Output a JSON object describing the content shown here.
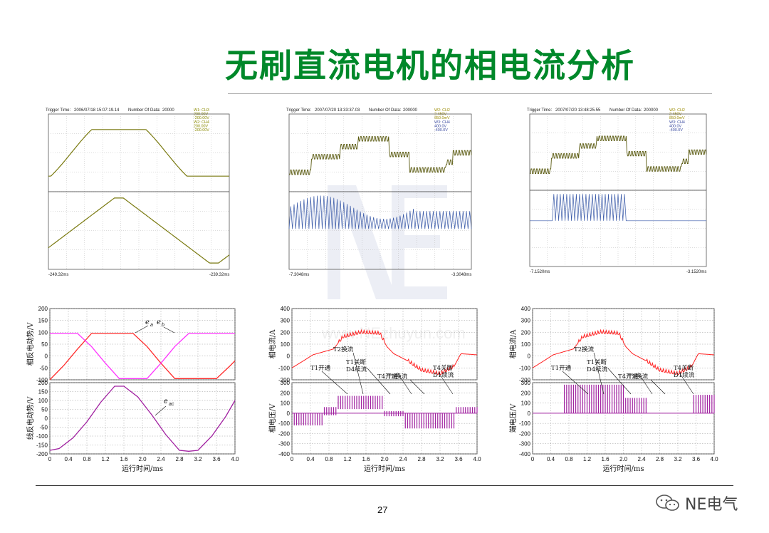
{
  "title": "无刷直流电机的相电流分析",
  "page_number": "27",
  "brand": "NE电气",
  "watermark_url": "www.NEzhuyun.com",
  "osc": [
    {
      "trigger_time": "2006/07/18  15:07:19.14",
      "num_data": "20000",
      "header_left": "Trigger Time:",
      "header_mid": "Number Of Data:",
      "channel_info": [
        "W1: CH3",
        "200.00V",
        "-200.00V",
        "W2: CH4",
        "200.00V",
        "-200.00V"
      ],
      "x_start": "-249.32ms",
      "x_end": "-239.32ms"
    },
    {
      "trigger_time": "2007/07/20  13:33:37.03",
      "num_data": "200000",
      "header_left": "Trigger Time:",
      "header_mid": "Number Of Data:",
      "channel_info": [
        "W2: CH2",
        "2.450V",
        "850.0mV",
        "W3: CH4",
        "400.0V",
        "-400.0V"
      ],
      "x_start": "-7.3048ms",
      "x_end": "-3.3048ms"
    },
    {
      "trigger_time": "2007/07/20  13:48:25.55",
      "num_data": "200000",
      "header_left": "Trigger Time:",
      "header_mid": "Number Of Data:",
      "channel_info": [
        "W2: CH2",
        "2.450V",
        "850.0mV",
        "W3: CH4",
        "400.0V",
        "-400.0V"
      ],
      "x_start": "-7.1520ms",
      "x_end": "-3.1520ms"
    }
  ],
  "chart_data": [
    {
      "type": "line",
      "title": "",
      "xlabel": "运行时间/ms",
      "x_ticks": [
        "0",
        "0.4",
        "0.8",
        "1.2",
        "1.6",
        "2.0",
        "2.4",
        "2.8",
        "3.2",
        "3.6",
        "4.0"
      ],
      "top": {
        "ylabel": "相反电动势/V",
        "ylim": [
          -100,
          200
        ],
        "y_ticks": [
          "200",
          "150",
          "100",
          "50",
          "0",
          "-50",
          "-100"
        ],
        "series": [
          {
            "name": "e_a",
            "color": "#ff2b2b",
            "x": [
              0,
              0.3,
              0.6,
              0.9,
              1.2,
              1.5,
              1.8,
              2.1,
              2.4,
              2.7,
              3.0,
              3.3,
              3.6,
              3.9,
              4.0
            ],
            "values": [
              -100,
              -40,
              30,
              95,
              95,
              95,
              95,
              40,
              -30,
              -95,
              -95,
              -95,
              -95,
              -40,
              -20
            ]
          },
          {
            "name": "e_b",
            "color": "#ff33ff",
            "x": [
              0,
              0.3,
              0.6,
              0.9,
              1.2,
              1.5,
              1.8,
              2.1,
              2.4,
              2.7,
              3.0,
              3.3,
              3.6,
              3.9,
              4.0
            ],
            "values": [
              95,
              95,
              95,
              40,
              -30,
              -95,
              -95,
              -95,
              -30,
              40,
              95,
              95,
              95,
              95,
              95
            ]
          }
        ],
        "annotations": [
          "e_a",
          "e_b"
        ]
      },
      "bottom": {
        "ylabel": "线反电动势/V",
        "ylim": [
          -200,
          200
        ],
        "y_ticks": [
          "200",
          "150",
          "100",
          "50",
          "0",
          "-50",
          "-100",
          "-150",
          "-200"
        ],
        "series": [
          {
            "name": "e_ac",
            "color": "#a020a0",
            "x": [
              0,
              0.2,
              0.5,
              0.8,
              1.1,
              1.4,
              1.6,
              1.9,
              2.2,
              2.5,
              2.8,
              3.0,
              3.2,
              3.5,
              3.8,
              4.0
            ],
            "values": [
              -180,
              -170,
              -110,
              -20,
              90,
              180,
              180,
              120,
              20,
              -90,
              -180,
              -185,
              -180,
              -100,
              10,
              100
            ]
          }
        ],
        "annotations": [
          "e_ac"
        ]
      }
    },
    {
      "type": "line",
      "title": "",
      "xlabel": "运行时间/ms",
      "x_ticks": [
        "0",
        "0.4",
        "0.8",
        "1.2",
        "1.6",
        "2.0",
        "2.4",
        "2.8",
        "3.2",
        "3.6",
        "4.0"
      ],
      "top": {
        "ylabel": "相电流/A",
        "ylim": [
          -200,
          400
        ],
        "y_ticks": [
          "400",
          "300",
          "200",
          "100",
          "0",
          "-100",
          "-200"
        ],
        "annotations": [
          "T1开通",
          "T2换流",
          "T1关断",
          "D4续流",
          "T4开通",
          "T5换流",
          "T4关断",
          "D1续流"
        ]
      },
      "bottom": {
        "ylabel": "相电压/V",
        "ylim": [
          -400,
          300
        ],
        "y_ticks": [
          "300",
          "200",
          "100",
          "0",
          "-100",
          "-200",
          "-300",
          "-400"
        ]
      }
    },
    {
      "type": "line",
      "title": "",
      "xlabel": "运行时间/ms",
      "x_ticks": [
        "0",
        "0.4",
        "0.8",
        "1.2",
        "1.6",
        "2.0",
        "2.4",
        "2.8",
        "3.2",
        "3.6",
        "4.0"
      ],
      "top": {
        "ylabel": "相电流/A",
        "ylim": [
          -200,
          400
        ],
        "y_ticks": [
          "400",
          "300",
          "200",
          "100",
          "0",
          "-100",
          "-200"
        ],
        "annotations": [
          "T1开通",
          "T2换流",
          "T1关断",
          "D4续流",
          "T4开通",
          "T5换流",
          "T4关断",
          "D1续流"
        ]
      },
      "bottom": {
        "ylabel": "端电压/V",
        "ylim": [
          -400,
          300
        ],
        "y_ticks": [
          "300",
          "200",
          "100",
          "0",
          "-100",
          "-200",
          "-300",
          "-400"
        ]
      }
    }
  ]
}
